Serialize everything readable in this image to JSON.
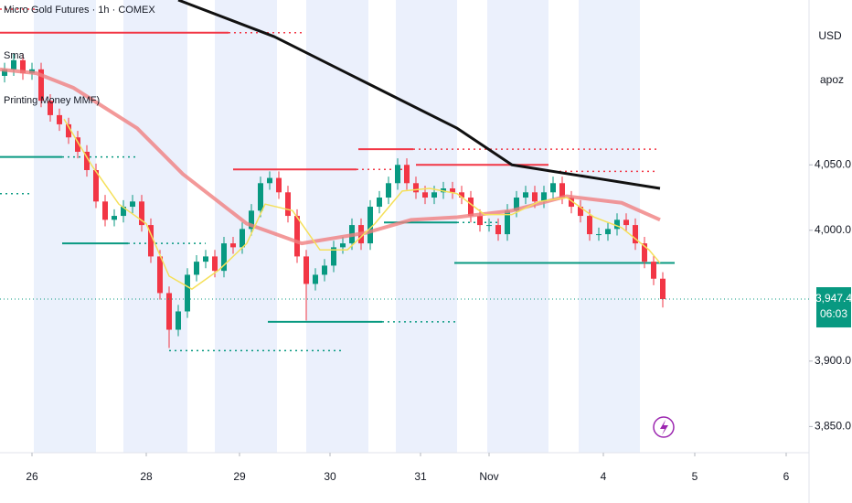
{
  "chart_data": {
    "type": "candlestick",
    "title": "Micro Gold Futures · 1h · COMEX",
    "indicators": [
      "Sma",
      "Printing Money MMF)"
    ],
    "currency": "USD",
    "account": "apoz",
    "up_color": "#089981",
    "down_color": "#f23645",
    "xlim": [
      0,
      88.5
    ],
    "ylim": [
      3830,
      4176
    ],
    "xticks": [
      {
        "value": 3.5,
        "label": "26"
      },
      {
        "value": 16,
        "label": "28"
      },
      {
        "value": 26.2,
        "label": "29"
      },
      {
        "value": 36.1,
        "label": "30"
      },
      {
        "value": 46,
        "label": "31"
      },
      {
        "value": 53.5,
        "label": "Nov"
      },
      {
        "value": 66,
        "label": "4"
      },
      {
        "value": 76,
        "label": "5"
      },
      {
        "value": 86,
        "label": "6"
      }
    ],
    "yticks": [
      {
        "value": 3850,
        "label": "3,850.0"
      },
      {
        "value": 3900,
        "label": "3,900.0"
      },
      {
        "value": 4000,
        "label": "4,000.0"
      },
      {
        "value": 4050,
        "label": "4,050.0"
      }
    ],
    "open": [
      4118,
      4123,
      4130,
      4120,
      4123,
      4099,
      4088,
      4081,
      4071,
      4060,
      4046,
      4022,
      4008,
      4011,
      4018,
      4022,
      4004,
      3980,
      3952,
      3924,
      3938,
      3966,
      3976,
      3980,
      3969,
      3990,
      3987,
      4001,
      4015,
      4036,
      4040,
      4029,
      4011,
      3980,
      3959,
      3966,
      3973,
      3987,
      3990,
      4004,
      3990,
      4018,
      4025,
      4036,
      4050,
      4036,
      4029,
      4025,
      4029,
      4032,
      4029,
      4025,
      4011,
      4004,
      4004,
      3997,
      4015,
      4025,
      4029,
      4022,
      4029,
      4036,
      4025,
      4018,
      4011,
      3997,
      3997,
      4001,
      4008,
      4004,
      3990,
      3976,
      3963
    ],
    "high": [
      4128,
      4135,
      4135,
      4128,
      4128,
      4104,
      4093,
      4086,
      4076,
      4065,
      4051,
      4027,
      4016,
      4023,
      4027,
      4027,
      4009,
      3985,
      3957,
      3943,
      3971,
      3981,
      3985,
      3985,
      3995,
      3995,
      4006,
      4020,
      4041,
      4045,
      4045,
      4034,
      4016,
      3985,
      3971,
      3978,
      3992,
      3995,
      4009,
      4009,
      4023,
      4030,
      4041,
      4055,
      4055,
      4041,
      4034,
      4034,
      4037,
      4037,
      4034,
      4030,
      4016,
      4009,
      4009,
      4020,
      4030,
      4034,
      4034,
      4034,
      4041,
      4041,
      4030,
      4023,
      4016,
      4002,
      4006,
      4013,
      4013,
      4009,
      3995,
      3981,
      3968
    ],
    "low": [
      4113,
      4118,
      4115,
      4115,
      4094,
      4083,
      4076,
      4066,
      4055,
      4041,
      4017,
      4003,
      4003,
      4006,
      4013,
      3999,
      3975,
      3947,
      3910,
      3919,
      3933,
      3961,
      3971,
      3964,
      3964,
      3982,
      3982,
      3996,
      4010,
      4031,
      4024,
      4006,
      3975,
      3931,
      3954,
      3961,
      3968,
      3982,
      3985,
      3985,
      3985,
      4013,
      4020,
      4031,
      4031,
      4024,
      4020,
      4020,
      4024,
      4024,
      4020,
      4006,
      3999,
      3999,
      3992,
      3992,
      4010,
      4020,
      4017,
      4017,
      4024,
      4020,
      4013,
      4006,
      3992,
      3992,
      3992,
      3996,
      3999,
      3985,
      3971,
      3958,
      3941
    ],
    "close": [
      4123,
      4130,
      4120,
      4123,
      4099,
      4088,
      4081,
      4071,
      4060,
      4046,
      4022,
      4008,
      4011,
      4018,
      4022,
      4004,
      3980,
      3952,
      3924,
      3938,
      3966,
      3976,
      3980,
      3969,
      3990,
      3987,
      4001,
      4015,
      4036,
      4040,
      4029,
      4011,
      3980,
      3959,
      3966,
      3973,
      3987,
      3990,
      4004,
      3990,
      4018,
      4025,
      4036,
      4050,
      4036,
      4029,
      4025,
      4029,
      4032,
      4029,
      4025,
      4011,
      4004,
      4004,
      3997,
      4015,
      4025,
      4029,
      4022,
      4029,
      4036,
      4025,
      4018,
      4011,
      3997,
      3997,
      4001,
      4008,
      4004,
      3990,
      3976,
      3963,
      3947.4
    ],
    "price_label": {
      "value": 3947.4,
      "label": "3,947.4"
    },
    "countdown": "06:03",
    "series": [
      {
        "color": "#f08080",
        "width": 4,
        "x": [
          0,
          4,
          8,
          15,
          20,
          27,
          33,
          40,
          45,
          50,
          56,
          62,
          68,
          72.2
        ],
        "values": [
          4123,
          4120,
          4109,
          4078,
          4043,
          4005,
          3990,
          3998,
          4008,
          4010,
          4015,
          4026,
          4021,
          4008
        ]
      },
      {
        "color": "#f5e05a",
        "width": 1.5,
        "x": [
          7,
          10,
          13,
          16,
          18.5,
          21,
          24,
          27,
          29,
          32,
          35,
          38,
          41,
          44,
          47,
          50,
          53,
          56,
          59,
          62,
          65,
          68,
          71,
          72.2
        ],
        "values": [
          4085,
          4050,
          4020,
          4005,
          3965,
          3955,
          3970,
          3990,
          4020,
          4015,
          3985,
          3985,
          4005,
          4030,
          4032,
          4028,
          4012,
          4012,
          4022,
          4025,
          4010,
          4002,
          3985,
          3975
        ]
      },
      {
        "color": "#111111",
        "width": 3,
        "x": [
          19.5,
          30,
          40,
          50,
          56,
          65,
          72.2
        ],
        "values": [
          4176,
          4148,
          4113,
          4078,
          4050,
          4040,
          4032
        ]
      }
    ],
    "levels": [
      {
        "price": 4151,
        "x": [
          0,
          25
        ],
        "color": "#f23645",
        "style": "solid"
      },
      {
        "price": 4151,
        "x": [
          25,
          33
        ],
        "color": "#f23645",
        "style": "dotted"
      },
      {
        "price": 4169,
        "x": [
          0,
          4
        ],
        "color": "#f23645",
        "style": "dotted"
      },
      {
        "price": 4056,
        "x": [
          0,
          6.8
        ],
        "color": "#089981",
        "style": "solid"
      },
      {
        "price": 4056,
        "x": [
          6.8,
          15
        ],
        "color": "#089981",
        "style": "dotted"
      },
      {
        "price": 4028,
        "x": [
          0,
          3.5
        ],
        "color": "#089981",
        "style": "dotted"
      },
      {
        "price": 3990,
        "x": [
          6.8,
          14
        ],
        "color": "#089981",
        "style": "solid"
      },
      {
        "price": 3990,
        "x": [
          14,
          22.5
        ],
        "color": "#089981",
        "style": "dotted"
      },
      {
        "price": 4046.5,
        "x": [
          25.5,
          39
        ],
        "color": "#f23645",
        "style": "solid"
      },
      {
        "price": 4046.5,
        "x": [
          39,
          44
        ],
        "color": "#f23645",
        "style": "dotted"
      },
      {
        "price": 3930,
        "x": [
          29.3,
          41.8
        ],
        "color": "#089981",
        "style": "solid"
      },
      {
        "price": 3930,
        "x": [
          41.8,
          50
        ],
        "color": "#089981",
        "style": "dotted"
      },
      {
        "price": 3908,
        "x": [
          18.5,
          37.5
        ],
        "color": "#089981",
        "style": "dotted"
      },
      {
        "price": 4062,
        "x": [
          39.2,
          45.2
        ],
        "color": "#f23645",
        "style": "solid"
      },
      {
        "price": 4062,
        "x": [
          45.2,
          72
        ],
        "color": "#f23645",
        "style": "dotted"
      },
      {
        "price": 4050,
        "x": [
          45.5,
          60
        ],
        "color": "#f23645",
        "style": "solid"
      },
      {
        "price": 4045,
        "x": [
          60,
          72
        ],
        "color": "#f23645",
        "style": "dotted"
      },
      {
        "price": 4006,
        "x": [
          42,
          50
        ],
        "color": "#089981",
        "style": "solid"
      },
      {
        "price": 4006,
        "x": [
          50,
          54.5
        ],
        "color": "#089981",
        "style": "dotted"
      },
      {
        "price": 3975,
        "x": [
          49.7,
          73.8
        ],
        "color": "#089981",
        "style": "solid"
      }
    ]
  }
}
